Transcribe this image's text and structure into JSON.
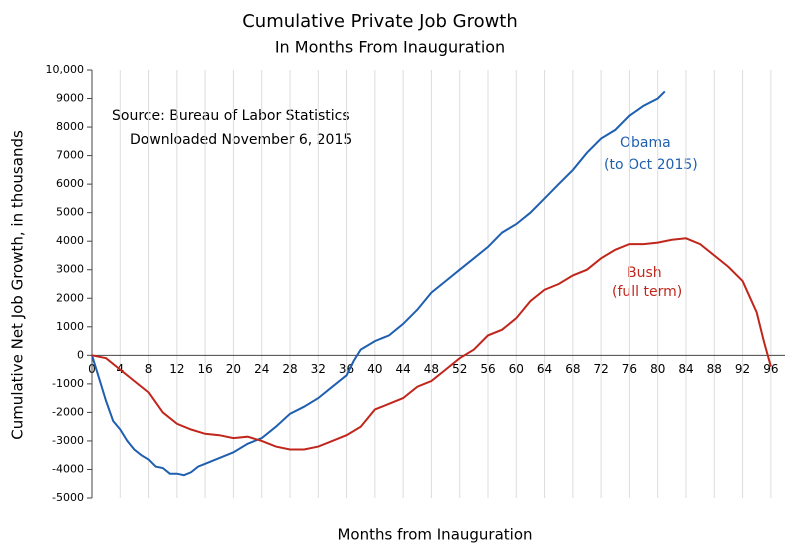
{
  "chart_data": {
    "type": "line",
    "title": "Cumulative Private Job Growth",
    "subtitle": "In Months From Inauguration",
    "x_label": "Months from Inauguration",
    "y_label": "Cumulative Net Job Growth, in thousands",
    "annotations": [
      "Source:  Bureau of Labor Statistics",
      "Downloaded November 6, 2015",
      "Obama",
      "(to Oct 2015)",
      "Bush",
      "(full term)"
    ],
    "xlim": [
      0,
      98
    ],
    "xticks": [
      0,
      4,
      8,
      12,
      16,
      20,
      24,
      28,
      32,
      36,
      40,
      44,
      48,
      52,
      56,
      60,
      64,
      68,
      72,
      76,
      80,
      84,
      88,
      92,
      96
    ],
    "ylim": [
      -5000,
      10000
    ],
    "yticks": [
      -5000,
      -4000,
      -3000,
      -2000,
      -1000,
      0,
      1000,
      2000,
      3000,
      4000,
      5000,
      6000,
      7000,
      8000,
      9000,
      {
        "value": 10000,
        "label": "10,000"
      }
    ],
    "grid": true,
    "series": [
      {
        "name": "Obama",
        "color": "#1f5fb0",
        "x": [
          0,
          1,
          2,
          3,
          4,
          5,
          6,
          7,
          8,
          9,
          10,
          11,
          12,
          13,
          14,
          15,
          16,
          18,
          20,
          22,
          24,
          26,
          28,
          30,
          32,
          34,
          36,
          37,
          38,
          40,
          42,
          44,
          46,
          48,
          50,
          52,
          54,
          56,
          58,
          60,
          62,
          64,
          66,
          68,
          70,
          72,
          74,
          76,
          78,
          80,
          81
        ],
        "values": [
          0,
          -800,
          -1600,
          -2300,
          -2600,
          -3000,
          -3300,
          -3500,
          -3650,
          -3900,
          -3950,
          -4150,
          -4150,
          -4200,
          -4100,
          -3900,
          -3800,
          -3600,
          -3400,
          -3100,
          -2900,
          -2500,
          -2050,
          -1800,
          -1500,
          -1100,
          -700,
          -200,
          200,
          500,
          700,
          1100,
          1600,
          2200,
          2600,
          3000,
          3400,
          3800,
          4300,
          4600,
          5000,
          5500,
          6000,
          6500,
          7100,
          7600,
          7900,
          8400,
          8750,
          9000,
          9250
        ]
      },
      {
        "name": "Bush",
        "color": "#c0261c",
        "x": [
          0,
          2,
          4,
          6,
          8,
          10,
          12,
          14,
          16,
          18,
          20,
          22,
          24,
          26,
          28,
          30,
          32,
          34,
          36,
          38,
          40,
          42,
          44,
          46,
          48,
          50,
          52,
          54,
          56,
          58,
          60,
          62,
          64,
          66,
          68,
          70,
          72,
          74,
          76,
          78,
          80,
          82,
          84,
          86,
          88,
          90,
          92,
          94,
          95,
          96
        ],
        "values": [
          0,
          -100,
          -500,
          -900,
          -1300,
          -2000,
          -2400,
          -2600,
          -2750,
          -2800,
          -2900,
          -2850,
          -3000,
          -3200,
          -3300,
          -3300,
          -3200,
          -3000,
          -2800,
          -2500,
          -1900,
          -1700,
          -1500,
          -1100,
          -900,
          -500,
          -100,
          200,
          700,
          900,
          1300,
          1900,
          2300,
          2500,
          2800,
          3000,
          3400,
          3700,
          3900,
          3900,
          3950,
          4050,
          4100,
          3900,
          3500,
          3100,
          2600,
          1500,
          500,
          -400
        ]
      }
    ]
  }
}
